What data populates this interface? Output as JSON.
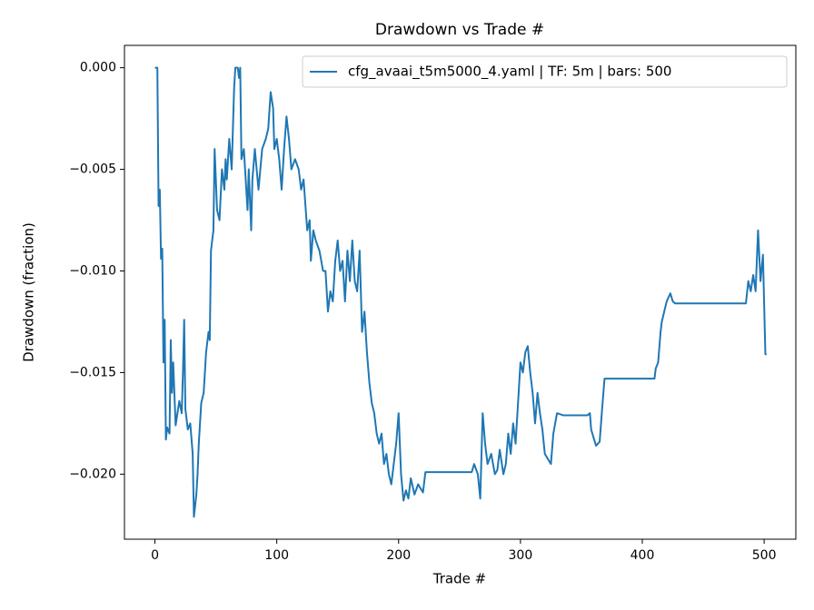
{
  "chart_data": {
    "type": "line",
    "title": "Drawdown vs Trade #",
    "x_label": "Trade #",
    "y_label": "Drawdown (fraction)",
    "xlim": [
      -25,
      526
    ],
    "ylim": [
      -0.0232,
      0.0011
    ],
    "xticks": [
      0,
      100,
      200,
      300,
      400,
      500
    ],
    "yticks": [
      {
        "value": -0.02,
        "label": "−0.020"
      },
      {
        "value": -0.015,
        "label": "−0.015"
      },
      {
        "value": -0.01,
        "label": "−0.010"
      },
      {
        "value": -0.005,
        "label": "−0.005"
      },
      {
        "value": 0,
        "label": "0.000"
      }
    ],
    "legend": "upper right",
    "grid": false,
    "x": [
      0,
      2,
      3,
      4,
      5,
      6,
      7,
      8,
      9,
      10,
      12,
      13,
      14,
      15,
      17,
      20,
      22,
      23,
      24,
      25,
      27,
      29,
      31,
      32,
      34,
      35,
      36,
      38,
      40,
      42,
      44,
      45,
      46,
      48,
      49,
      51,
      53,
      55,
      57,
      58,
      59,
      61,
      63,
      65,
      66,
      68,
      69,
      70,
      71,
      73,
      75,
      76,
      77,
      78,
      79,
      80,
      82,
      85,
      88,
      91,
      93,
      95,
      97,
      98,
      100,
      102,
      104,
      106,
      108,
      110,
      112,
      115,
      118,
      120,
      122,
      125,
      127,
      128,
      130,
      132,
      135,
      138,
      140,
      142,
      144,
      146,
      148,
      150,
      152,
      154,
      156,
      158,
      160,
      162,
      164,
      166,
      168,
      170,
      172,
      174,
      176,
      178,
      180,
      182,
      184,
      186,
      188,
      190,
      192,
      194,
      196,
      198,
      200,
      202,
      204,
      206,
      208,
      210,
      213,
      216,
      220,
      222,
      260,
      262,
      265,
      267,
      269,
      271,
      273,
      276,
      279,
      281,
      283,
      286,
      288,
      290,
      292,
      294,
      296,
      298,
      300,
      302,
      304,
      306,
      308,
      310,
      312,
      314,
      316,
      318,
      320,
      325,
      327,
      330,
      335,
      355,
      357,
      358,
      360,
      362,
      365,
      367,
      369,
      410,
      411,
      413,
      415,
      416,
      418,
      420,
      423,
      425,
      427,
      485,
      487,
      489,
      491,
      493,
      495,
      497,
      499,
      501,
      502
    ],
    "series": [
      {
        "name": "cfg_avaai_t5m5000_4.yaml | TF: 5m | bars: 500",
        "color": "#1f77b4",
        "values": [
          0,
          0,
          -0.0068,
          -0.006,
          -0.0094,
          -0.0089,
          -0.0145,
          -0.0124,
          -0.0183,
          -0.0177,
          -0.018,
          -0.0134,
          -0.016,
          -0.0145,
          -0.0176,
          -0.0164,
          -0.017,
          -0.015,
          -0.0124,
          -0.0168,
          -0.0178,
          -0.0175,
          -0.019,
          -0.0221,
          -0.021,
          -0.02,
          -0.0185,
          -0.0165,
          -0.016,
          -0.014,
          -0.013,
          -0.0134,
          -0.009,
          -0.008,
          -0.004,
          -0.007,
          -0.0075,
          -0.005,
          -0.006,
          -0.0045,
          -0.0055,
          -0.0035,
          -0.005,
          -0.001,
          0,
          0,
          -0.0005,
          0,
          -0.0045,
          -0.004,
          -0.006,
          -0.007,
          -0.005,
          -0.0065,
          -0.008,
          -0.0055,
          -0.004,
          -0.006,
          -0.004,
          -0.0035,
          -0.003,
          -0.0012,
          -0.002,
          -0.004,
          -0.0035,
          -0.0045,
          -0.006,
          -0.004,
          -0.0024,
          -0.0035,
          -0.005,
          -0.0045,
          -0.005,
          -0.006,
          -0.0055,
          -0.008,
          -0.0075,
          -0.0095,
          -0.008,
          -0.0085,
          -0.009,
          -0.01,
          -0.01,
          -0.012,
          -0.011,
          -0.0115,
          -0.0095,
          -0.0085,
          -0.01,
          -0.0095,
          -0.0115,
          -0.009,
          -0.0105,
          -0.0085,
          -0.0105,
          -0.011,
          -0.009,
          -0.013,
          -0.012,
          -0.014,
          -0.0155,
          -0.0165,
          -0.017,
          -0.018,
          -0.0185,
          -0.018,
          -0.0195,
          -0.019,
          -0.02,
          -0.0205,
          -0.0195,
          -0.0185,
          -0.017,
          -0.02,
          -0.0213,
          -0.0208,
          -0.0212,
          -0.0202,
          -0.021,
          -0.0205,
          -0.0209,
          -0.0199,
          -0.0199,
          -0.0195,
          -0.02,
          -0.0212,
          -0.017,
          -0.0185,
          -0.0195,
          -0.019,
          -0.02,
          -0.0198,
          -0.0188,
          -0.02,
          -0.0195,
          -0.018,
          -0.019,
          -0.0175,
          -0.0185,
          -0.0165,
          -0.0145,
          -0.015,
          -0.014,
          -0.0137,
          -0.015,
          -0.016,
          -0.0175,
          -0.016,
          -0.017,
          -0.0178,
          -0.019,
          -0.0195,
          -0.018,
          -0.017,
          -0.0171,
          -0.0171,
          -0.017,
          -0.0178,
          -0.0182,
          -0.0186,
          -0.0184,
          -0.0168,
          -0.0153,
          -0.0153,
          -0.0148,
          -0.0145,
          -0.013,
          -0.0125,
          -0.012,
          -0.0115,
          -0.0111,
          -0.0115,
          -0.0116,
          -0.0116,
          -0.0105,
          -0.011,
          -0.0102,
          -0.011,
          -0.008,
          -0.0105,
          -0.0092,
          -0.0141,
          -0.0141
        ]
      }
    ]
  }
}
